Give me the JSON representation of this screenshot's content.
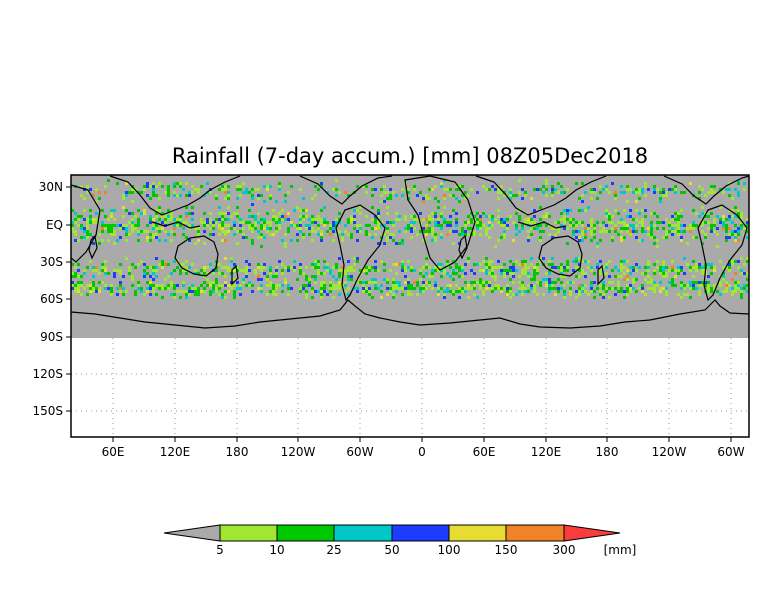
{
  "title": "Rainfall (7-day accum.) [mm] 08Z05Dec2018",
  "lat_labels": [
    "30N",
    "EQ",
    "30S",
    "60S",
    "90S",
    "120S",
    "150S"
  ],
  "lon_labels": [
    "60E",
    "120E",
    "180",
    "120W",
    "60W",
    "0",
    "60E",
    "120E",
    "180",
    "120W",
    "60W"
  ],
  "colorbar": {
    "thresholds": [
      "5",
      "10",
      "25",
      "50",
      "100",
      "150",
      "300"
    ],
    "unit": "[mm]",
    "colors": [
      "#aaaaaa",
      "#a0e632",
      "#00c800",
      "#00c8c8",
      "#1e3cff",
      "#e6dc32",
      "#f08228",
      "#fa3c3c"
    ]
  },
  "map_colors": {
    "land_background": "#aaaaaa",
    "coastline": "#000000"
  }
}
